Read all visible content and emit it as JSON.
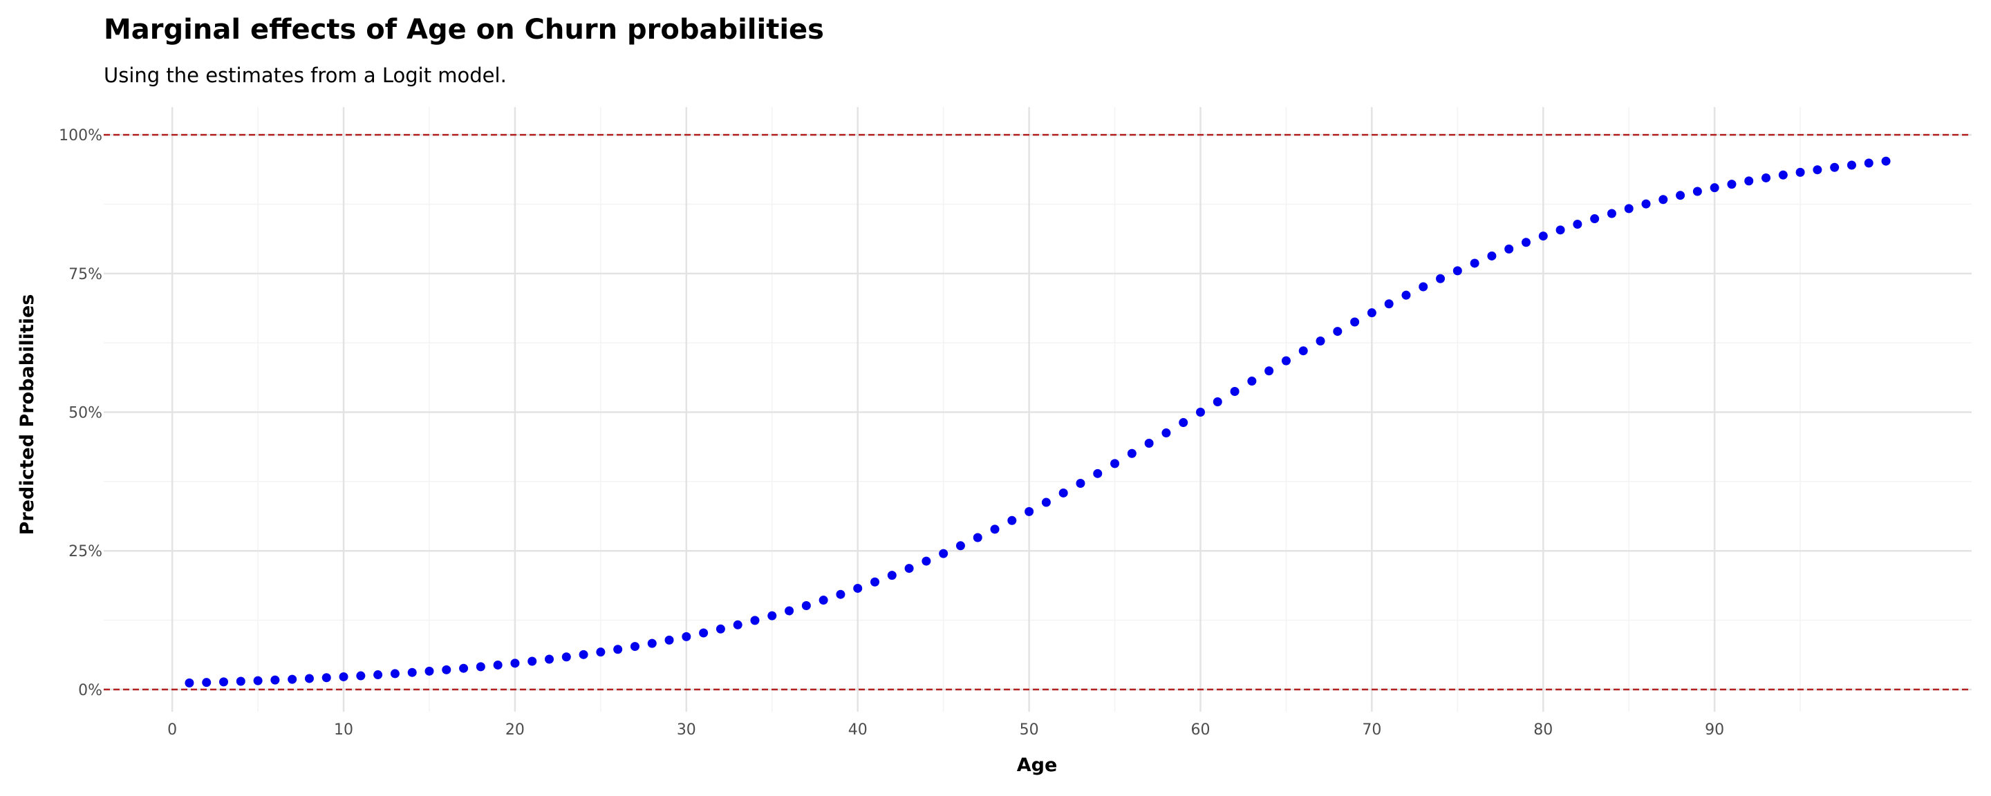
{
  "chart_data": {
    "type": "scatter",
    "title": "Marginal effects of Age on Churn probabilities",
    "subtitle": "Using the estimates from a Logit model.",
    "xlabel": "Age",
    "ylabel": "Predicted Probabilities",
    "xlim": [
      -4,
      105
    ],
    "ylim": [
      -0.04,
      1.05
    ],
    "x_ticks": [
      0,
      10,
      20,
      30,
      40,
      50,
      60,
      70,
      80,
      90
    ],
    "y_ticks": [
      0,
      0.25,
      0.5,
      0.75,
      1.0
    ],
    "y_tick_labels": [
      "0%",
      "25%",
      "50%",
      "75%",
      "100%"
    ],
    "grid": true,
    "legend": "none",
    "point_color": "#0000ee",
    "reference_lines": [
      {
        "y": 0,
        "color": "#b22222",
        "style": "dashed"
      },
      {
        "y": 1,
        "color": "#b22222",
        "style": "dashed"
      }
    ],
    "logit_model": {
      "intercept": -4.5,
      "slope": 0.075
    },
    "series": [
      {
        "x": [
          1,
          2,
          3,
          4,
          5,
          6,
          7,
          8,
          9,
          10,
          11,
          12,
          13,
          14,
          15,
          16,
          17,
          18,
          19,
          20,
          21,
          22,
          23,
          24,
          25,
          26,
          27,
          28,
          29,
          30,
          31,
          32,
          33,
          34,
          35,
          36,
          37,
          38,
          39,
          40,
          41,
          42,
          43,
          44,
          45,
          46,
          47,
          48,
          49,
          50,
          51,
          52,
          53,
          54,
          55,
          56,
          57,
          58,
          59,
          60,
          61,
          62,
          63,
          64,
          65,
          66,
          67,
          68,
          69,
          70,
          71,
          72,
          73,
          74,
          75,
          76,
          77,
          78,
          79,
          80,
          81,
          82,
          83,
          84,
          85,
          86,
          87,
          88,
          89,
          90,
          91,
          92,
          93,
          94,
          95,
          96,
          97,
          98,
          99,
          100
        ]
      }
    ]
  }
}
